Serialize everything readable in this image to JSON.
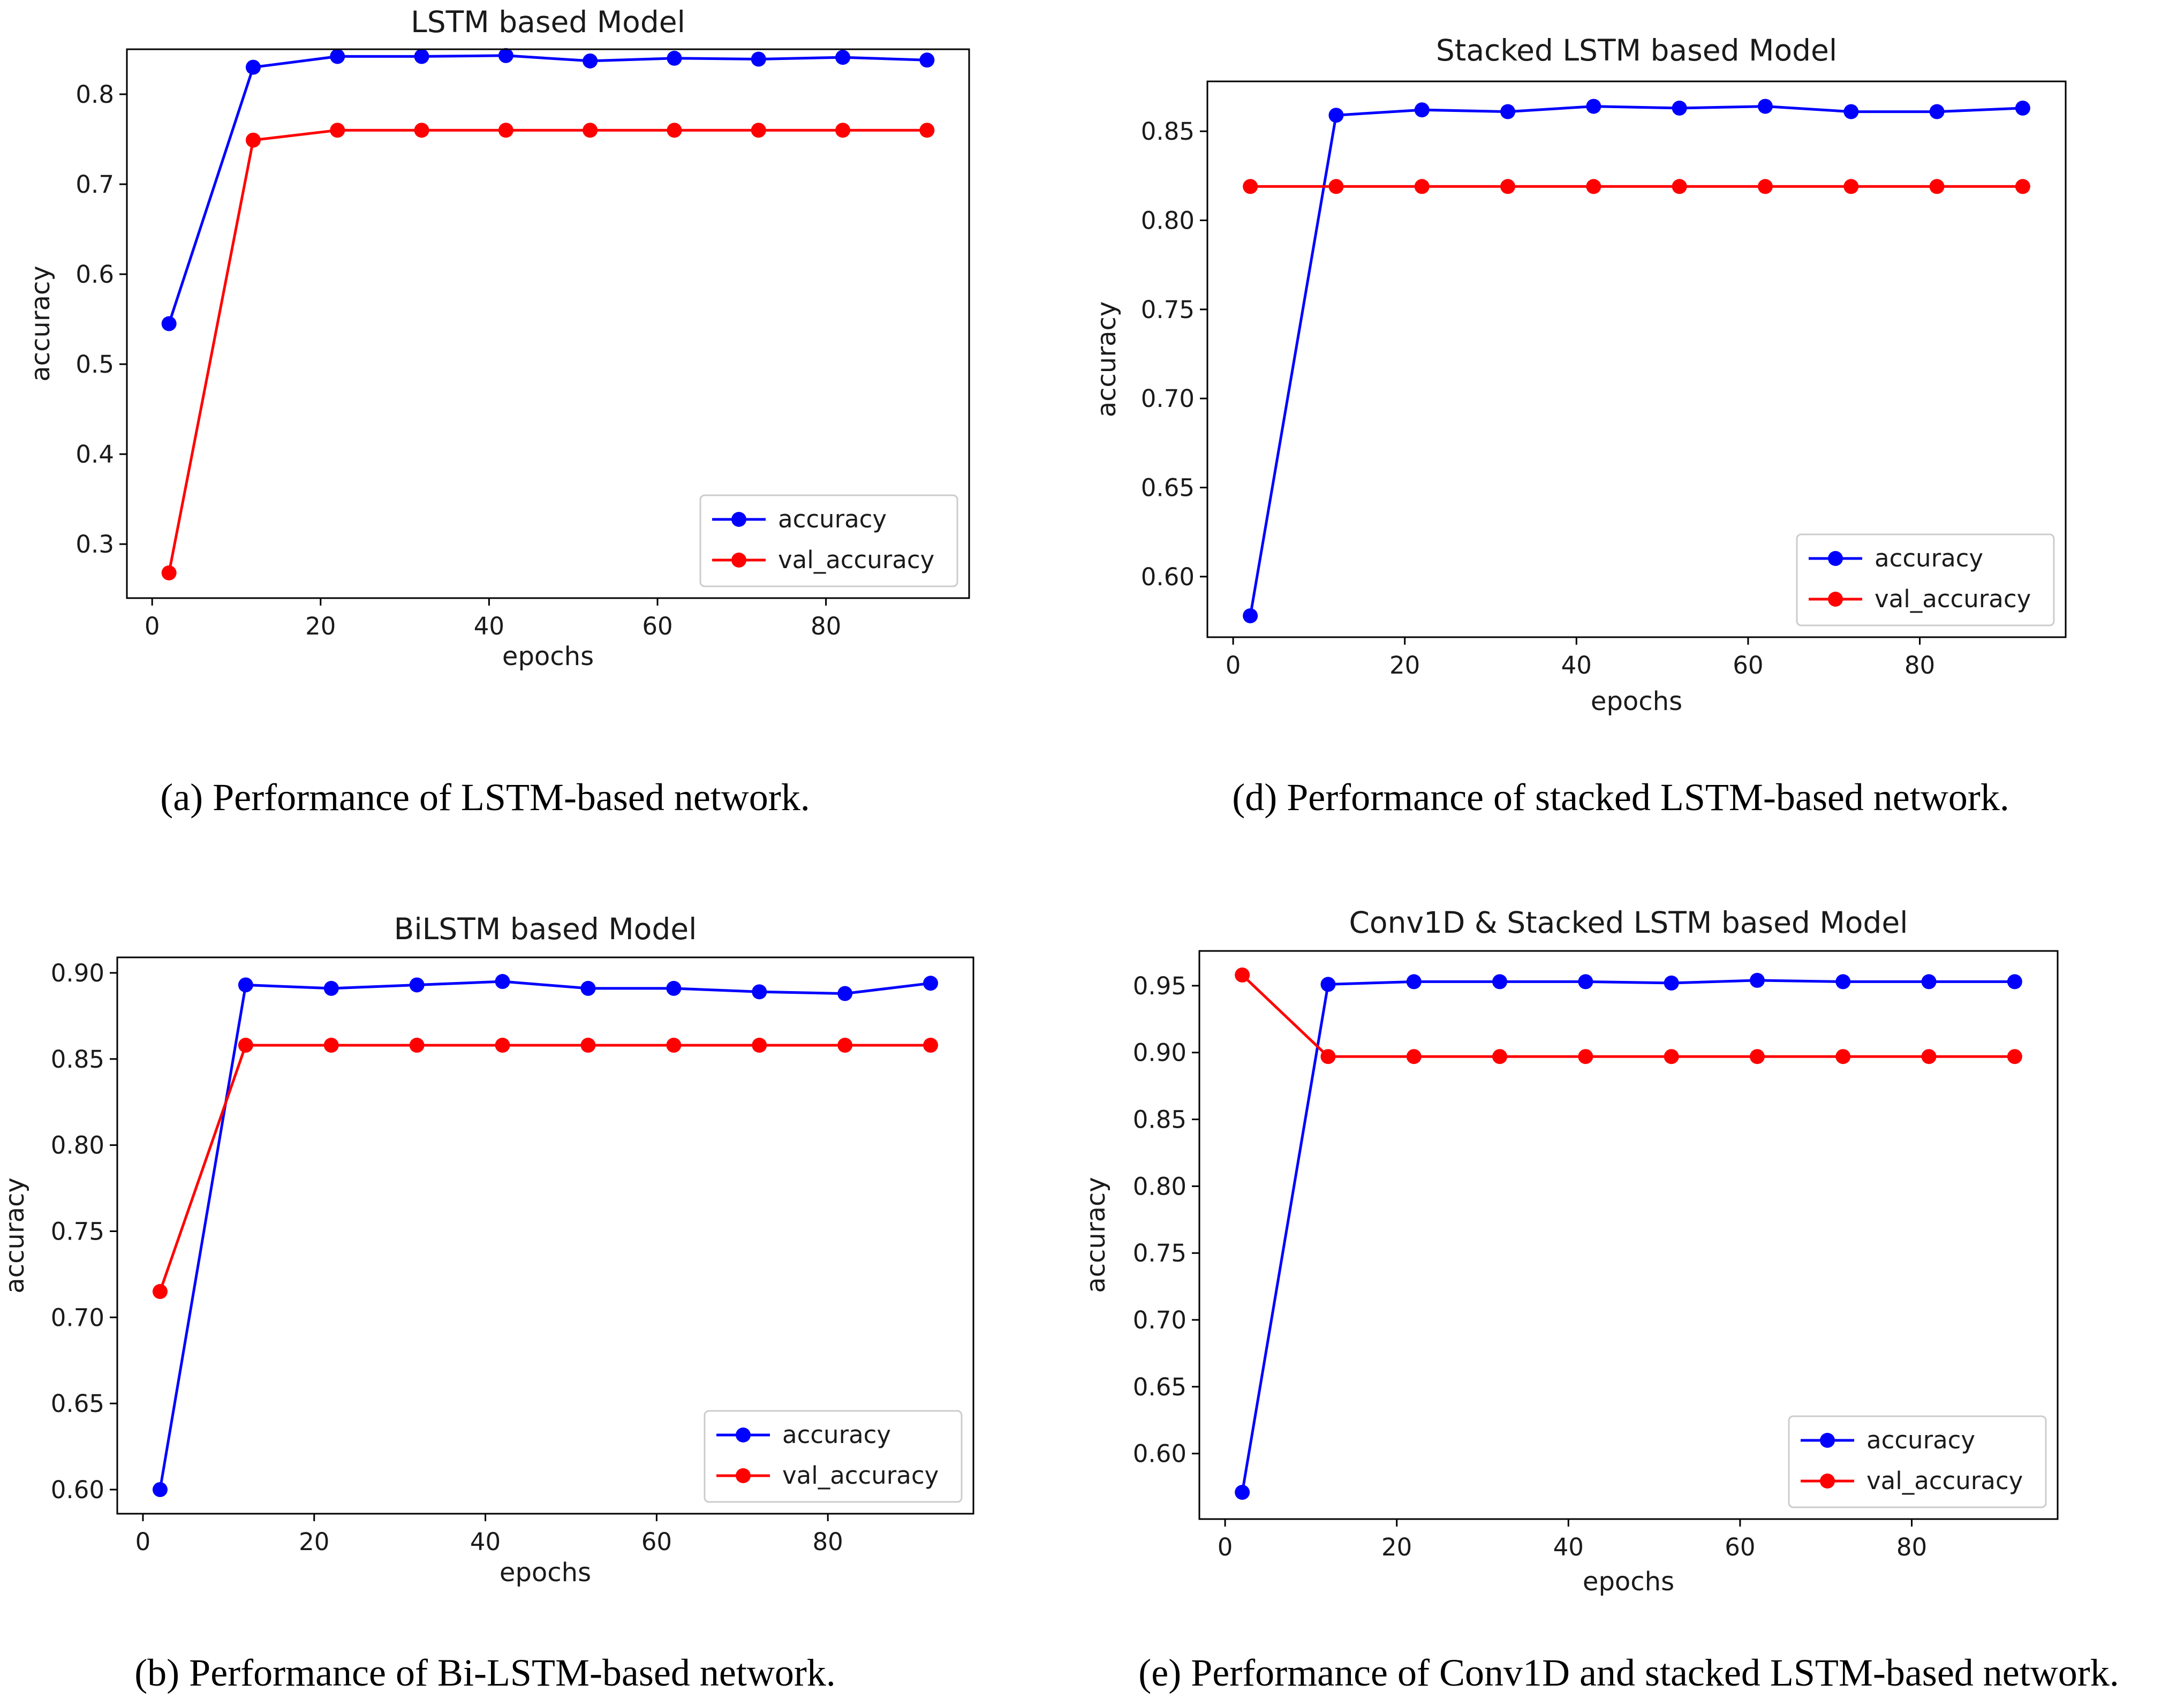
{
  "figure_caption_style": "serif",
  "chart_data": [
    {
      "id": "a",
      "type": "line",
      "title": "LSTM based Model",
      "xlabel": "epochs",
      "ylabel": "accuracy",
      "xlim": [
        -3,
        97
      ],
      "ylim": [
        0.24,
        0.85
      ],
      "xticks": [
        0,
        20,
        40,
        60,
        80
      ],
      "yticks": [
        0.3,
        0.4,
        0.5,
        0.6,
        0.7,
        0.8
      ],
      "ytick_labels": [
        "0.3",
        "0.4",
        "0.5",
        "0.6",
        "0.7",
        "0.8"
      ],
      "x": [
        2,
        12,
        22,
        32,
        42,
        52,
        62,
        72,
        82,
        92
      ],
      "series": [
        {
          "name": "accuracy",
          "color": "#0000ff",
          "values": [
            0.545,
            0.83,
            0.842,
            0.842,
            0.843,
            0.837,
            0.84,
            0.839,
            0.841,
            0.838
          ]
        },
        {
          "name": "val_accuracy",
          "color": "#ff0000",
          "values": [
            0.268,
            0.749,
            0.76,
            0.76,
            0.76,
            0.76,
            0.76,
            0.76,
            0.76,
            0.76
          ]
        }
      ],
      "legend": "lower right",
      "caption_letter": "a",
      "caption_text": "Performance of LSTM-based network."
    },
    {
      "id": "d",
      "type": "line",
      "title": "Stacked LSTM based Model",
      "xlabel": "epochs",
      "ylabel": "accuracy",
      "xlim": [
        -3,
        97
      ],
      "ylim": [
        0.566,
        0.878
      ],
      "xticks": [
        0,
        20,
        40,
        60,
        80
      ],
      "yticks": [
        0.6,
        0.65,
        0.7,
        0.75,
        0.8,
        0.85
      ],
      "ytick_labels": [
        "0.60",
        "0.65",
        "0.70",
        "0.75",
        "0.80",
        "0.85"
      ],
      "x": [
        2,
        12,
        22,
        32,
        42,
        52,
        62,
        72,
        82,
        92
      ],
      "series": [
        {
          "name": "accuracy",
          "color": "#0000ff",
          "values": [
            0.578,
            0.859,
            0.862,
            0.861,
            0.864,
            0.863,
            0.864,
            0.861,
            0.861,
            0.863
          ]
        },
        {
          "name": "val_accuracy",
          "color": "#ff0000",
          "values": [
            0.819,
            0.819,
            0.819,
            0.819,
            0.819,
            0.819,
            0.819,
            0.819,
            0.819,
            0.819
          ]
        }
      ],
      "legend": "lower right",
      "caption_letter": "d",
      "caption_text": "Performance of stacked LSTM-based network."
    },
    {
      "id": "b",
      "type": "line",
      "title": "BiLSTM based Model",
      "xlabel": "epochs",
      "ylabel": "accuracy",
      "xlim": [
        -3,
        97
      ],
      "ylim": [
        0.586,
        0.909
      ],
      "xticks": [
        0,
        20,
        40,
        60,
        80
      ],
      "yticks": [
        0.6,
        0.65,
        0.7,
        0.75,
        0.8,
        0.85,
        0.9
      ],
      "ytick_labels": [
        "0.60",
        "0.65",
        "0.70",
        "0.75",
        "0.80",
        "0.85",
        "0.90"
      ],
      "x": [
        2,
        12,
        22,
        32,
        42,
        52,
        62,
        72,
        82,
        92
      ],
      "series": [
        {
          "name": "accuracy",
          "color": "#0000ff",
          "values": [
            0.6,
            0.893,
            0.891,
            0.893,
            0.895,
            0.891,
            0.891,
            0.889,
            0.888,
            0.894
          ]
        },
        {
          "name": "val_accuracy",
          "color": "#ff0000",
          "values": [
            0.715,
            0.858,
            0.858,
            0.858,
            0.858,
            0.858,
            0.858,
            0.858,
            0.858,
            0.858
          ]
        }
      ],
      "legend": "lower right",
      "caption_letter": "b",
      "caption_text": "Performance of Bi-LSTM-based network."
    },
    {
      "id": "e",
      "type": "line",
      "title": "Conv1D & Stacked LSTM based Model",
      "xlabel": "epochs",
      "ylabel": "accuracy",
      "xlim": [
        -3,
        97
      ],
      "ylim": [
        0.551,
        0.976
      ],
      "xticks": [
        0,
        20,
        40,
        60,
        80
      ],
      "yticks": [
        0.6,
        0.65,
        0.7,
        0.75,
        0.8,
        0.85,
        0.9,
        0.95
      ],
      "ytick_labels": [
        "0.60",
        "0.65",
        "0.70",
        "0.75",
        "0.80",
        "0.85",
        "0.90",
        "0.95"
      ],
      "x": [
        2,
        12,
        22,
        32,
        42,
        52,
        62,
        72,
        82,
        92
      ],
      "series": [
        {
          "name": "accuracy",
          "color": "#0000ff",
          "values": [
            0.571,
            0.951,
            0.953,
            0.953,
            0.953,
            0.952,
            0.954,
            0.953,
            0.953,
            0.953
          ]
        },
        {
          "name": "val_accuracy",
          "color": "#ff0000",
          "values": [
            0.958,
            0.897,
            0.897,
            0.897,
            0.897,
            0.897,
            0.897,
            0.897,
            0.897,
            0.897
          ]
        }
      ],
      "legend": "lower right",
      "caption_letter": "e",
      "caption_text": "Performance of Conv1D and stacked LSTM-based network."
    }
  ]
}
